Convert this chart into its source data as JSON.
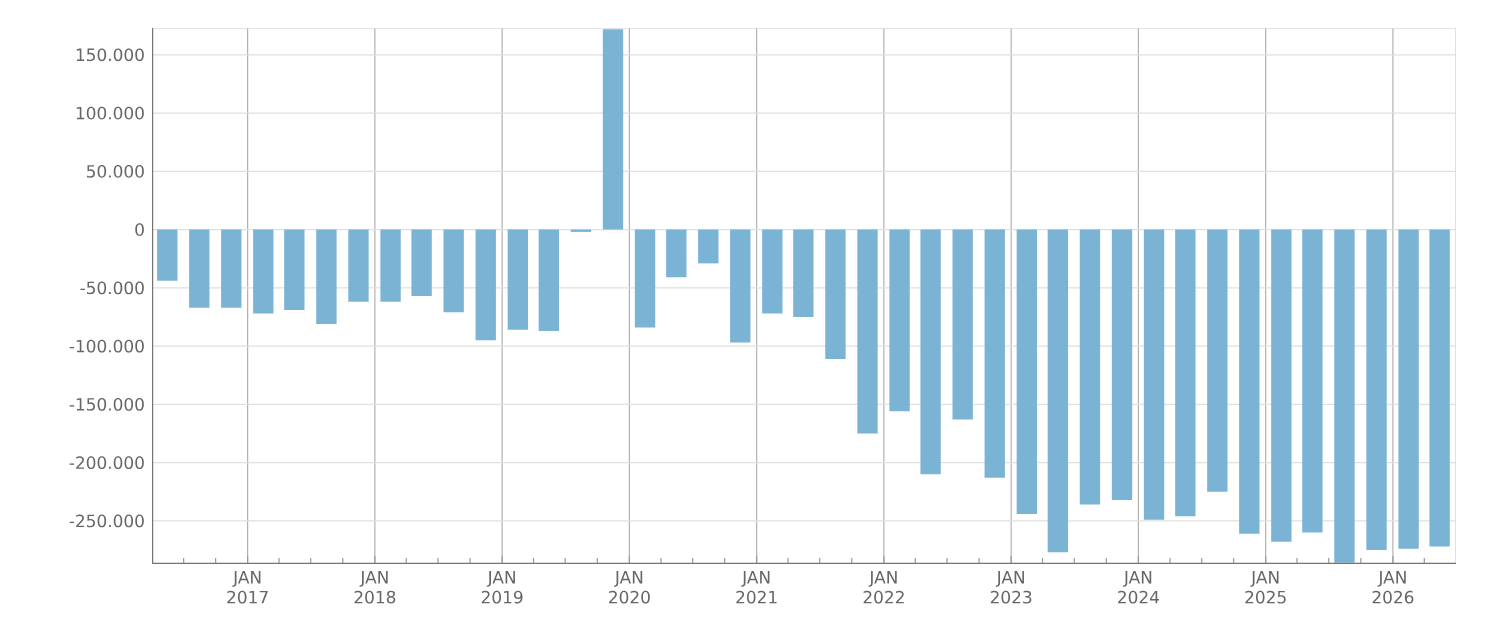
{
  "chart_data": {
    "type": "bar",
    "color": "#7ab3d4",
    "grid": true,
    "x": [
      "2016-05-15",
      "2016-08-15",
      "2016-11-15",
      "2017-02-15",
      "2017-05-15",
      "2017-08-15",
      "2017-11-15",
      "2018-02-15",
      "2018-05-15",
      "2018-08-15",
      "2018-11-15",
      "2019-02-15",
      "2019-05-15",
      "2019-08-15",
      "2019-11-15",
      "2020-02-15",
      "2020-05-15",
      "2020-08-15",
      "2020-11-15",
      "2021-02-15",
      "2021-05-15",
      "2021-08-15",
      "2021-11-15",
      "2022-02-15",
      "2022-05-15",
      "2022-08-15",
      "2022-11-15",
      "2023-02-15",
      "2023-05-15",
      "2023-08-15",
      "2023-11-15",
      "2024-02-15",
      "2024-05-15",
      "2024-08-15",
      "2024-11-15",
      "2025-02-15",
      "2025-05-15",
      "2025-08-15",
      "2025-11-15",
      "2026-02-15",
      "2026-05-15"
    ],
    "values": [
      -44000,
      -67000,
      -67000,
      -72000,
      -69000,
      -81000,
      -62000,
      -62000,
      -57000,
      -71000,
      -95000,
      -86000,
      -87000,
      -2000,
      172000,
      -84000,
      -41000,
      -29000,
      -97000,
      -72000,
      -75000,
      -111000,
      -175000,
      -156000,
      -210000,
      -163000,
      -213000,
      -244000,
      -277000,
      -236000,
      -232000,
      -249000,
      -246000,
      -225000,
      -261000,
      -268000,
      -260000,
      -286000,
      -275000,
      -274000,
      -272000
    ],
    "xlim": [
      "2016-04-01",
      "2026-07-01"
    ],
    "ylim": [
      -287000,
      173000
    ],
    "xticks": [
      {
        "value": "2016-07-01",
        "label": null
      },
      {
        "value": "2016-10-01",
        "label": null
      },
      {
        "value": "2017-01-01",
        "label": "JAN 2017"
      },
      {
        "value": "2017-04-01",
        "label": null
      },
      {
        "value": "2017-07-01",
        "label": null
      },
      {
        "value": "2017-10-01",
        "label": null
      },
      {
        "value": "2018-01-01",
        "label": "JAN 2018"
      },
      {
        "value": "2018-04-01",
        "label": null
      },
      {
        "value": "2018-07-01",
        "label": null
      },
      {
        "value": "2018-10-01",
        "label": null
      },
      {
        "value": "2019-01-01",
        "label": "JAN 2019"
      },
      {
        "value": "2019-04-01",
        "label": null
      },
      {
        "value": "2019-07-01",
        "label": null
      },
      {
        "value": "2019-10-01",
        "label": null
      },
      {
        "value": "2020-01-01",
        "label": "JAN 2020"
      },
      {
        "value": "2020-04-01",
        "label": null
      },
      {
        "value": "2020-07-01",
        "label": null
      },
      {
        "value": "2020-10-01",
        "label": null
      },
      {
        "value": "2021-01-01",
        "label": "JAN 2021"
      },
      {
        "value": "2021-04-01",
        "label": null
      },
      {
        "value": "2021-07-01",
        "label": null
      },
      {
        "value": "2021-10-01",
        "label": null
      },
      {
        "value": "2022-01-01",
        "label": "JAN 2022"
      },
      {
        "value": "2022-04-01",
        "label": null
      },
      {
        "value": "2022-07-01",
        "label": null
      },
      {
        "value": "2022-10-01",
        "label": null
      },
      {
        "value": "2023-01-01",
        "label": "JAN 2023"
      },
      {
        "value": "2023-04-01",
        "label": null
      },
      {
        "value": "2023-07-01",
        "label": null
      },
      {
        "value": "2023-10-01",
        "label": null
      },
      {
        "value": "2024-01-01",
        "label": "JAN 2024"
      },
      {
        "value": "2024-04-01",
        "label": null
      },
      {
        "value": "2024-07-01",
        "label": null
      },
      {
        "value": "2024-10-01",
        "label": null
      },
      {
        "value": "2025-01-01",
        "label": "JAN 2025"
      },
      {
        "value": "2025-04-01",
        "label": null
      },
      {
        "value": "2025-07-01",
        "label": null
      },
      {
        "value": "2025-10-01",
        "label": null
      },
      {
        "value": "2026-01-01",
        "label": "JAN 2026"
      },
      {
        "value": "2026-04-01",
        "label": null
      }
    ],
    "yticks": [
      {
        "value": -250000,
        "label": "-250.000"
      },
      {
        "value": -200000,
        "label": "-200.000"
      },
      {
        "value": -150000,
        "label": "-150.000"
      },
      {
        "value": -100000,
        "label": "-100.000"
      },
      {
        "value": -50000,
        "label": "-50.000"
      },
      {
        "value": 0,
        "label": "0"
      },
      {
        "value": 50000,
        "label": "50.000"
      },
      {
        "value": 100000,
        "label": "100.000"
      },
      {
        "value": 150000,
        "label": "150.000"
      }
    ]
  }
}
